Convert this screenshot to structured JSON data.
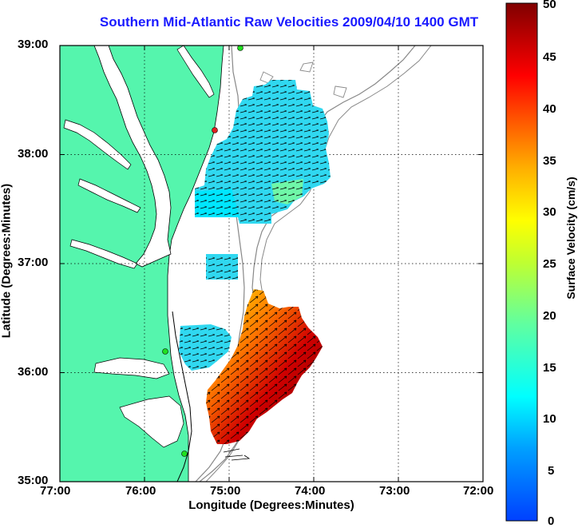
{
  "title": "Southern Mid-Atlantic Raw Velocities 2009/04/10 1400 GMT",
  "x_axis": {
    "label": "Longitude (Degrees:Minutes)",
    "ticks": [
      "77:00",
      "76:00",
      "75:00",
      "74:00",
      "73:00",
      "72:00"
    ]
  },
  "y_axis": {
    "label": "Latitude (Degrees:Minutes)",
    "ticks": [
      "39:00",
      "38:00",
      "37:00",
      "36:00",
      "35:00"
    ]
  },
  "colorbar": {
    "label": "Surface Velocity (cm/s)",
    "ticks": [
      "50",
      "45",
      "40",
      "35",
      "30",
      "25",
      "20",
      "15",
      "10",
      "5",
      "0"
    ],
    "colors": [
      "#0000ff",
      "#00bfff",
      "#00ffff",
      "#7fff7f",
      "#ffff00",
      "#ff8000",
      "#ff0000",
      "#800000"
    ]
  },
  "map": {
    "land_color": "#55f5ad",
    "water_color": "#ffffff",
    "grid": "dotted",
    "features": [
      "coastline",
      "chesapeake-bay",
      "delaware-bay",
      "shelf-isobaths",
      "radar-stations",
      "velocity-vectors"
    ]
  }
}
